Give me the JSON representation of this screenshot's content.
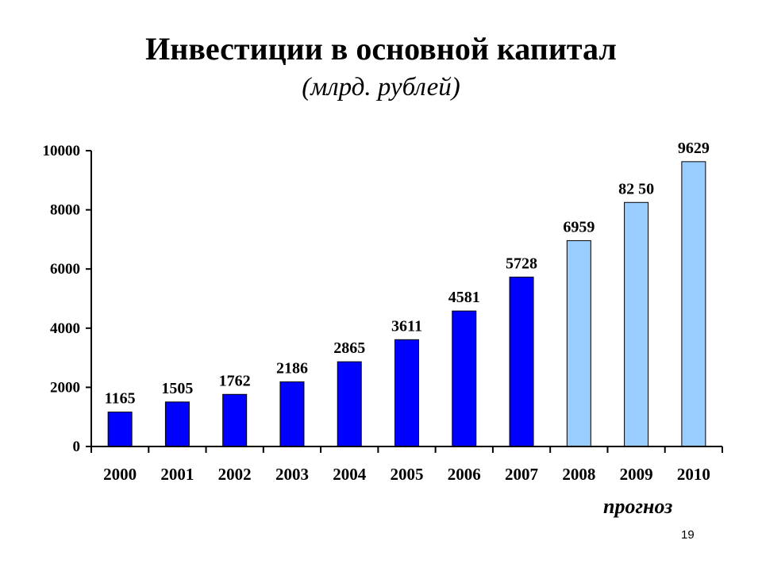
{
  "slide": {
    "page_number": "19",
    "forecast_label": "прогноз"
  },
  "chart_data": {
    "type": "bar",
    "title": "Инвестиции в основной капитал",
    "subtitle": "(млрд. рублей)",
    "xlabel": "",
    "ylabel": "",
    "categories": [
      "2000",
      "2001",
      "2002",
      "2003",
      "2004",
      "2005",
      "2006",
      "2007",
      "2008",
      "2009",
      "2010"
    ],
    "values": [
      1165,
      1505,
      1762,
      2186,
      2865,
      3611,
      4581,
      5728,
      6959,
      8250,
      9629
    ],
    "value_labels": [
      "1165",
      "1505",
      "1762",
      "2186",
      "2865",
      "3611",
      "4581",
      "5728",
      "6959",
      "82 50",
      "9629"
    ],
    "forecast": [
      false,
      false,
      false,
      false,
      false,
      false,
      false,
      false,
      true,
      true,
      true
    ],
    "ylim": [
      0,
      10000
    ],
    "yticks": [
      0,
      2000,
      4000,
      6000,
      8000,
      10000
    ],
    "grid": false,
    "legend": "none",
    "colors": {
      "actual": "#0000ff",
      "forecast": "#99ccff",
      "outline": "#000000"
    }
  }
}
